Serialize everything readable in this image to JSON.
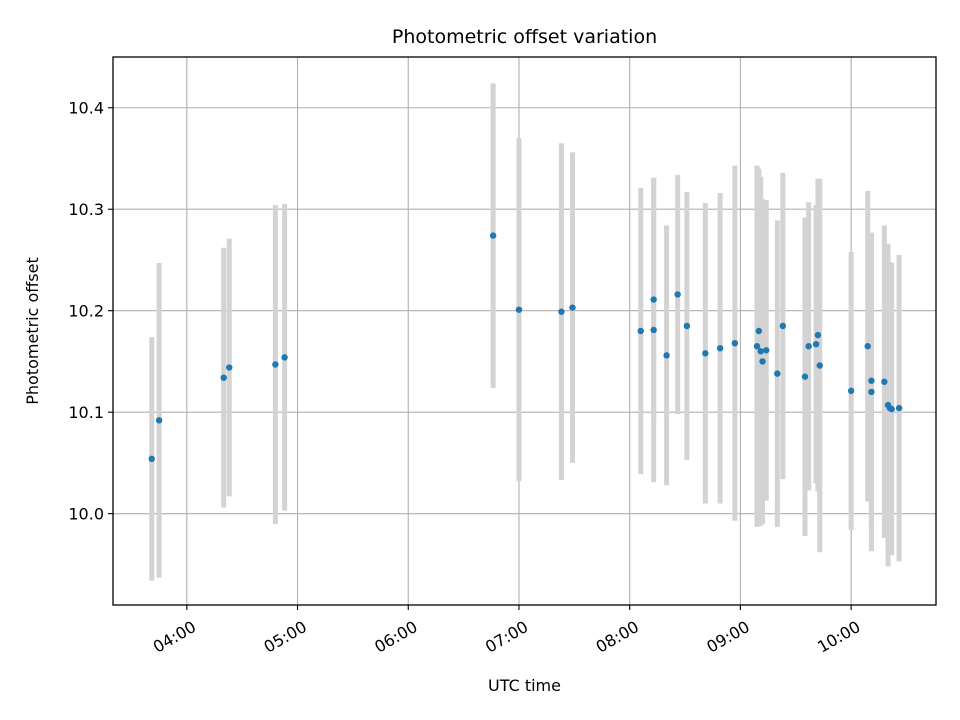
{
  "chart_data": {
    "type": "scatter",
    "title": "Photometric offset variation",
    "xlabel": "UTC time",
    "ylabel": "Photometric offset",
    "x_unit": "time of day (HH:MM, UTC)",
    "xlim": [
      "03:20",
      "10:46"
    ],
    "ylim": [
      9.91,
      10.45
    ],
    "x_ticks": [
      "04:00",
      "05:00",
      "06:00",
      "07:00",
      "08:00",
      "09:00",
      "10:00"
    ],
    "y_ticks": [
      10.0,
      10.1,
      10.2,
      10.3,
      10.4
    ],
    "y_tick_labels": [
      "10.0",
      "10.1",
      "10.2",
      "10.3",
      "10.4"
    ],
    "grid": true,
    "colors": {
      "point": "#1f77b4",
      "errorbar": "#d3d3d3",
      "grid": "#b0b0b0"
    },
    "points": [
      {
        "x": "03:41",
        "y": 10.054,
        "yerr": 0.12
      },
      {
        "x": "03:45",
        "y": 10.092,
        "yerr": 0.155
      },
      {
        "x": "04:20",
        "y": 10.134,
        "yerr": 0.128
      },
      {
        "x": "04:23",
        "y": 10.144,
        "yerr": 0.127
      },
      {
        "x": "04:48",
        "y": 10.147,
        "yerr": 0.157
      },
      {
        "x": "04:53",
        "y": 10.154,
        "yerr": 0.151
      },
      {
        "x": "06:46",
        "y": 10.274,
        "yerr": 0.15
      },
      {
        "x": "07:00",
        "y": 10.201,
        "yerr": 0.169
      },
      {
        "x": "07:23",
        "y": 10.199,
        "yerr": 0.166
      },
      {
        "x": "07:29",
        "y": 10.203,
        "yerr": 0.153
      },
      {
        "x": "08:06",
        "y": 10.18,
        "yerr": 0.141
      },
      {
        "x": "08:13",
        "y": 10.211,
        "yerr": 0.12
      },
      {
        "x": "08:13",
        "y": 10.181,
        "yerr": 0.15
      },
      {
        "x": "08:20",
        "y": 10.156,
        "yerr": 0.128
      },
      {
        "x": "08:26",
        "y": 10.216,
        "yerr": 0.118
      },
      {
        "x": "08:31",
        "y": 10.185,
        "yerr": 0.132
      },
      {
        "x": "08:41",
        "y": 10.158,
        "yerr": 0.148
      },
      {
        "x": "08:49",
        "y": 10.163,
        "yerr": 0.153
      },
      {
        "x": "08:57",
        "y": 10.168,
        "yerr": 0.175
      },
      {
        "x": "09:09",
        "y": 10.165,
        "yerr": 0.178
      },
      {
        "x": "09:10",
        "y": 10.18,
        "yerr": 0.16
      },
      {
        "x": "09:11",
        "y": 10.16,
        "yerr": 0.172
      },
      {
        "x": "09:12",
        "y": 10.15,
        "yerr": 0.16
      },
      {
        "x": "09:14",
        "y": 10.161,
        "yerr": 0.148
      },
      {
        "x": "09:20",
        "y": 10.138,
        "yerr": 0.151
      },
      {
        "x": "09:23",
        "y": 10.185,
        "yerr": 0.151
      },
      {
        "x": "09:35",
        "y": 10.135,
        "yerr": 0.157
      },
      {
        "x": "09:37",
        "y": 10.165,
        "yerr": 0.142
      },
      {
        "x": "09:41",
        "y": 10.167,
        "yerr": 0.137
      },
      {
        "x": "09:42",
        "y": 10.176,
        "yerr": 0.154
      },
      {
        "x": "09:43",
        "y": 10.146,
        "yerr": 0.184
      },
      {
        "x": "10:00",
        "y": 10.121,
        "yerr": 0.137
      },
      {
        "x": "10:09",
        "y": 10.165,
        "yerr": 0.153
      },
      {
        "x": "10:11",
        "y": 10.12,
        "yerr": 0.157
      },
      {
        "x": "10:11",
        "y": 10.131,
        "yerr": 0.146
      },
      {
        "x": "10:18",
        "y": 10.13,
        "yerr": 0.154
      },
      {
        "x": "10:20",
        "y": 10.107,
        "yerr": 0.159
      },
      {
        "x": "10:21",
        "y": 10.104,
        "yerr": 0.144
      },
      {
        "x": "10:22",
        "y": 10.103,
        "yerr": 0.144
      },
      {
        "x": "10:26",
        "y": 10.104,
        "yerr": 0.151
      }
    ]
  }
}
